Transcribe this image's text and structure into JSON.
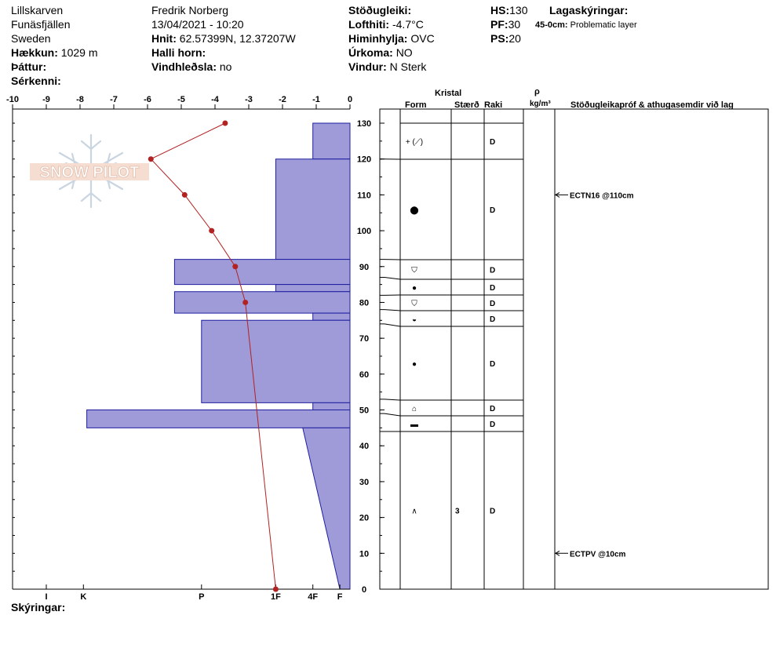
{
  "header": {
    "location": "Lillskarven",
    "area": "Funäsfjällen",
    "country": "Sweden",
    "elevation_label": "Hækkun:",
    "elevation_value": "1029 m",
    "factor_label": "Þáttur:",
    "features_label": "Sérkenni:",
    "observer": "Fredrik Norberg",
    "datetime": "13/04/2021 - 10:20",
    "coords_label": "Hnit:",
    "coords_value": "62.57399N, 12.37207W",
    "slope_label": "Halli horn:",
    "windload_label": "Vindhleðsla:",
    "windload_value": "no",
    "stability_label": "Stöðugleiki:",
    "airtemp_label": "Lofthiti:",
    "airtemp_value": "-4.7°C",
    "sky_label": "Himinhylja:",
    "sky_value": "OVC",
    "precip_label": "Úrkoma:",
    "precip_value": "NO",
    "wind_label": "Vindur:",
    "wind_value": "N Sterk",
    "hs_label": "HS:",
    "hs_value": "130",
    "pf_label": "PF:",
    "pf_value": "30",
    "ps_label": "PS:",
    "ps_value": "20",
    "layers_label": "Lagaskýringar:",
    "layer_note_range": "45-0cm:",
    "layer_note_text": "Problematic layer"
  },
  "footer": {
    "notes_label": "Skýringar:"
  },
  "logo_text": "SNOW PILOT",
  "columns": {
    "crystal": "Kristal",
    "form": "Form",
    "size": "Stærð",
    "moisture": "Raki",
    "rho": "ρ",
    "density_unit": "kg/m³",
    "tests": "Stöðugleikapróf & athugasemdir við lag"
  },
  "colors": {
    "hardness_fill": "#9e9bd8",
    "hardness_edge": "#1f1fa0",
    "temp_line": "#b22222"
  },
  "chart_data": {
    "type": "step-area",
    "x_ticks": [
      "-10",
      "-9",
      "-8",
      "-7",
      "-6",
      "-5",
      "-4",
      "-3",
      "-2",
      "-1",
      "0"
    ],
    "xlim": [
      -10,
      0
    ],
    "ylim": [
      0,
      130
    ],
    "y_ticks": [
      0,
      10,
      20,
      30,
      40,
      50,
      60,
      70,
      80,
      90,
      100,
      110,
      120,
      130
    ],
    "hardness_ticks": [
      "I",
      "K",
      "P",
      "1F",
      "4F",
      "F"
    ],
    "hardness_series": {
      "name": "Hardness",
      "layers": [
        {
          "top": 130,
          "bottom": 120,
          "value": -1.1
        },
        {
          "top": 120,
          "bottom": 92,
          "value": -2.2
        },
        {
          "top": 92,
          "bottom": 85,
          "value": -5.2
        },
        {
          "top": 85,
          "bottom": 83,
          "value": -2.2
        },
        {
          "top": 83,
          "bottom": 77,
          "value": -5.2
        },
        {
          "top": 77,
          "bottom": 75,
          "value": -1.1
        },
        {
          "top": 75,
          "bottom": 52,
          "value": -4.4
        },
        {
          "top": 52,
          "bottom": 50,
          "value": -1.1
        },
        {
          "top": 50,
          "bottom": 45,
          "value": -7.8
        },
        {
          "top": 45,
          "bottom": 0,
          "value": -1.4,
          "value_bottom": -0.3
        }
      ]
    },
    "temperature_series": {
      "name": "Temperature",
      "points": [
        {
          "t": -3.7,
          "h": 130
        },
        {
          "t": -5.9,
          "h": 120
        },
        {
          "t": -4.9,
          "h": 110
        },
        {
          "t": -4.1,
          "h": 100
        },
        {
          "t": -3.4,
          "h": 90
        },
        {
          "t": -3.1,
          "h": 80
        },
        {
          "t": -2.2,
          "h": 0
        }
      ]
    }
  },
  "layers": [
    {
      "top": 130,
      "bottom": 120,
      "form": "+ (⟋)",
      "size": "",
      "moisture": "D"
    },
    {
      "top": 120,
      "bottom": 92,
      "form": "⬤",
      "size": "",
      "moisture": "D"
    },
    {
      "top": 92,
      "bottom": 87,
      "form": "⛉",
      "size": "",
      "moisture": "D"
    },
    {
      "top": 87,
      "bottom": 82,
      "form": "●",
      "size": "",
      "moisture": "D"
    },
    {
      "top": 82,
      "bottom": 78,
      "form": "⛉",
      "size": "",
      "moisture": "D"
    },
    {
      "top": 78,
      "bottom": 74,
      "form": "◒",
      "size": "",
      "moisture": "D"
    },
    {
      "top": 74,
      "bottom": 53,
      "form": "●",
      "size": "",
      "moisture": "D"
    },
    {
      "top": 53,
      "bottom": 49,
      "form": "⌂",
      "size": "",
      "moisture": "D"
    },
    {
      "top": 49,
      "bottom": 44,
      "form": "▬",
      "size": "",
      "moisture": "D"
    },
    {
      "top": 44,
      "bottom": 0,
      "form": "∧",
      "size": "3",
      "moisture": "D"
    }
  ],
  "tests": [
    {
      "height": 110,
      "text": "ECTN16 @110cm"
    },
    {
      "height": 10,
      "text": "ECTPV @10cm"
    }
  ]
}
